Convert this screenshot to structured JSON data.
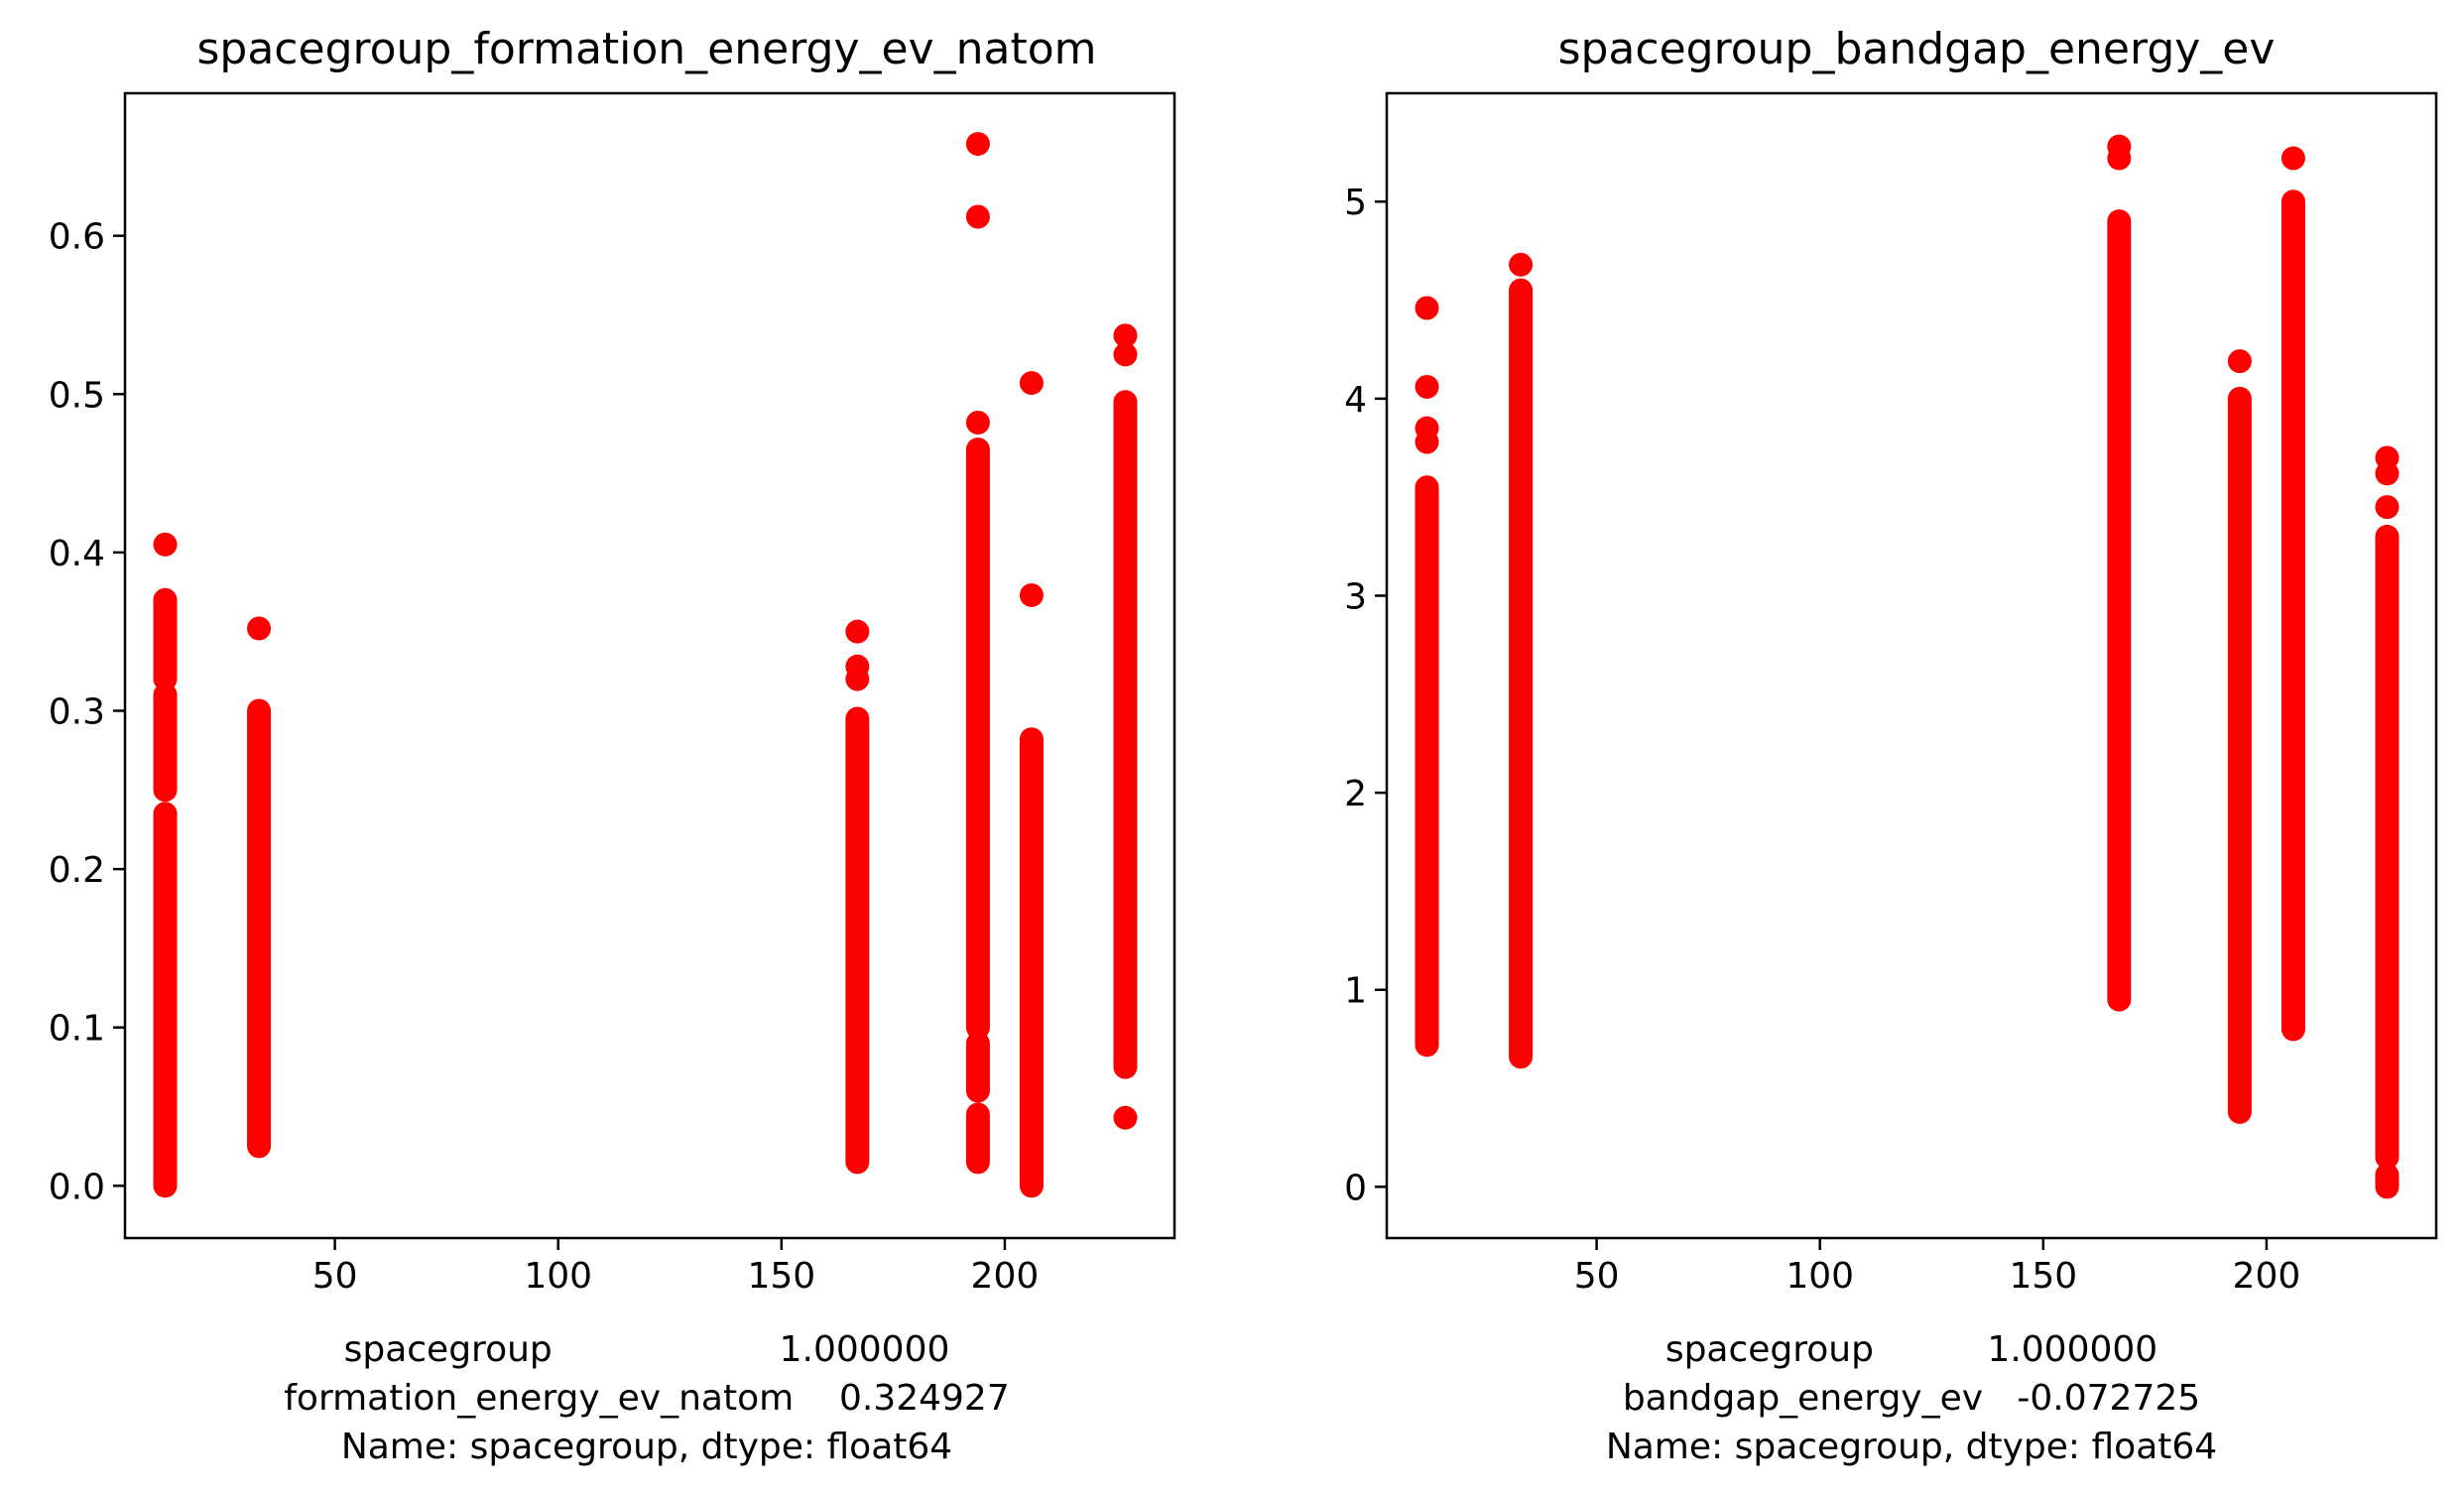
{
  "point_color": "#ff0000",
  "chart_data": [
    {
      "type": "scatter",
      "title": "spacegroup_formation_energy_ev_natom",
      "xlim": [
        3,
        238
      ],
      "ylim": [
        -0.033,
        0.69
      ],
      "xticks": [
        50,
        100,
        150,
        200
      ],
      "yticks": [
        0.0,
        0.1,
        0.2,
        0.3,
        0.4,
        0.5,
        0.6
      ],
      "xlabel_lines": [
        "spacegroup                    1.000000",
        "formation_energy_ev_natom    0.324927",
        "Name: spacegroup, dtype: float64"
      ],
      "clusters": [
        {
          "x": 12,
          "ranges": [
            [
              0.0,
              0.235
            ],
            [
              0.25,
              0.31
            ],
            [
              0.32,
              0.37
            ]
          ],
          "outliers": [
            0.405
          ]
        },
        {
          "x": 33,
          "ranges": [
            [
              0.025,
              0.3
            ]
          ],
          "outliers": [
            0.352
          ]
        },
        {
          "x": 167,
          "ranges": [
            [
              0.015,
              0.295
            ]
          ],
          "outliers": [
            0.32,
            0.328,
            0.35
          ]
        },
        {
          "x": 194,
          "ranges": [
            [
              0.015,
              0.045
            ],
            [
              0.06,
              0.09
            ],
            [
              0.1,
              0.465
            ]
          ],
          "outliers": [
            0.482,
            0.612,
            0.658
          ]
        },
        {
          "x": 206,
          "ranges": [
            [
              0.0,
              0.282
            ]
          ],
          "outliers": [
            0.373,
            0.507
          ]
        },
        {
          "x": 227,
          "ranges": [
            [
              0.075,
              0.495
            ]
          ],
          "outliers": [
            0.043,
            0.525,
            0.537
          ]
        }
      ]
    },
    {
      "type": "scatter",
      "title": "spacegroup_bandgap_energy_ev",
      "xlim": [
        3,
        238
      ],
      "ylim": [
        -0.26,
        5.55
      ],
      "xticks": [
        50,
        100,
        150,
        200
      ],
      "yticks": [
        0,
        1,
        2,
        3,
        4,
        5
      ],
      "xlabel_lines": [
        "spacegroup          1.000000",
        "bandgap_energy_ev   -0.072725",
        "Name: spacegroup, dtype: float64"
      ],
      "clusters": [
        {
          "x": 12,
          "ranges": [
            [
              0.72,
              3.55
            ]
          ],
          "outliers": [
            3.78,
            3.85,
            4.06,
            4.46
          ]
        },
        {
          "x": 33,
          "ranges": [
            [
              0.66,
              4.55
            ]
          ],
          "outliers": [
            4.68
          ]
        },
        {
          "x": 167,
          "ranges": [
            [
              0.95,
              4.9
            ]
          ],
          "outliers": [
            5.22,
            5.28
          ]
        },
        {
          "x": 194,
          "ranges": [
            [
              0.38,
              4.0
            ]
          ],
          "outliers": [
            4.19
          ]
        },
        {
          "x": 206,
          "ranges": [
            [
              0.8,
              5.0
            ]
          ],
          "outliers": [
            5.22
          ]
        },
        {
          "x": 227,
          "ranges": [
            [
              0.0,
              0.06
            ],
            [
              0.15,
              3.3
            ]
          ],
          "outliers": [
            3.45,
            3.62,
            3.7
          ]
        }
      ]
    }
  ]
}
